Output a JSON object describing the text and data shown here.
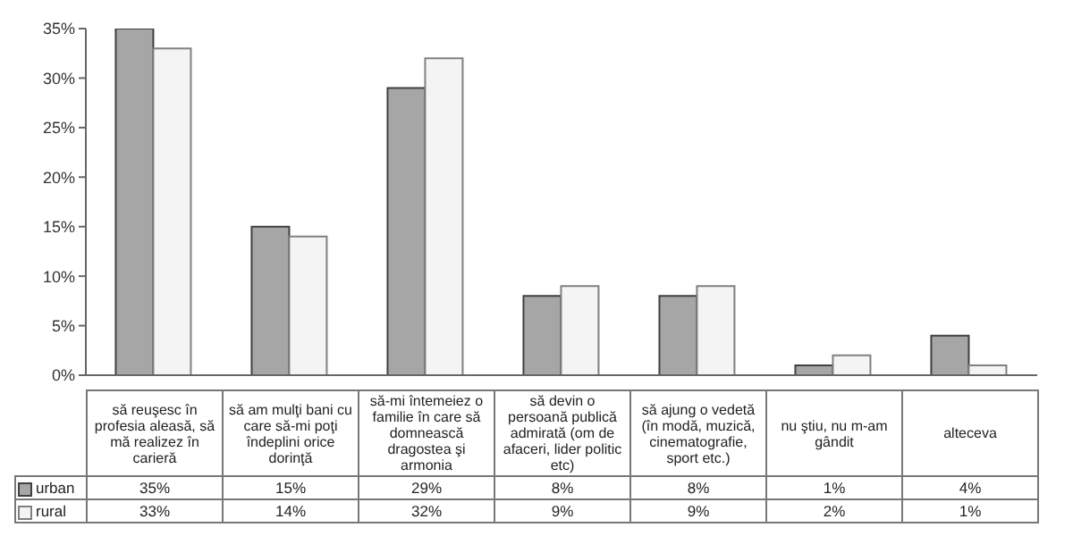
{
  "chart_data": {
    "type": "bar",
    "categories": [
      "să reuşesc în profesia aleasă, să mă realizez în carieră",
      "să am mulţi bani cu care să-mi poţi îndeplini orice dorinţă",
      "să-mi întemeiez o familie în care să domnească dragostea şi armonia",
      "să devin o persoană publică admirată (om de afaceri, lider politic etc)",
      "să ajung o vedetă (în modă, muzică, cinematografie, sport etc.)",
      "nu ştiu, nu m-am gândit",
      "alteceva"
    ],
    "series": [
      {
        "name": "urban",
        "color": "#a6a6a6",
        "values": [
          35,
          15,
          29,
          8,
          8,
          1,
          4
        ],
        "value_labels": [
          "35%",
          "15%",
          "29%",
          "8%",
          "8%",
          "1%",
          "4%"
        ]
      },
      {
        "name": "rural",
        "color": "#f4f4f4",
        "values": [
          33,
          14,
          32,
          9,
          9,
          2,
          1
        ],
        "value_labels": [
          "33%",
          "14%",
          "32%",
          "9%",
          "9%",
          "2%",
          "1%"
        ]
      }
    ],
    "ylim": [
      0,
      35
    ],
    "yticks": [
      {
        "value": 0,
        "label": "0%"
      },
      {
        "value": 5,
        "label": "5%"
      },
      {
        "value": 10,
        "label": "10%"
      },
      {
        "value": 15,
        "label": "15%"
      },
      {
        "value": 20,
        "label": "20%"
      },
      {
        "value": 25,
        "label": "25%"
      },
      {
        "value": 30,
        "label": "30%"
      },
      {
        "value": 35,
        "label": "35%"
      }
    ],
    "grid": false,
    "legend": "bottom left"
  }
}
